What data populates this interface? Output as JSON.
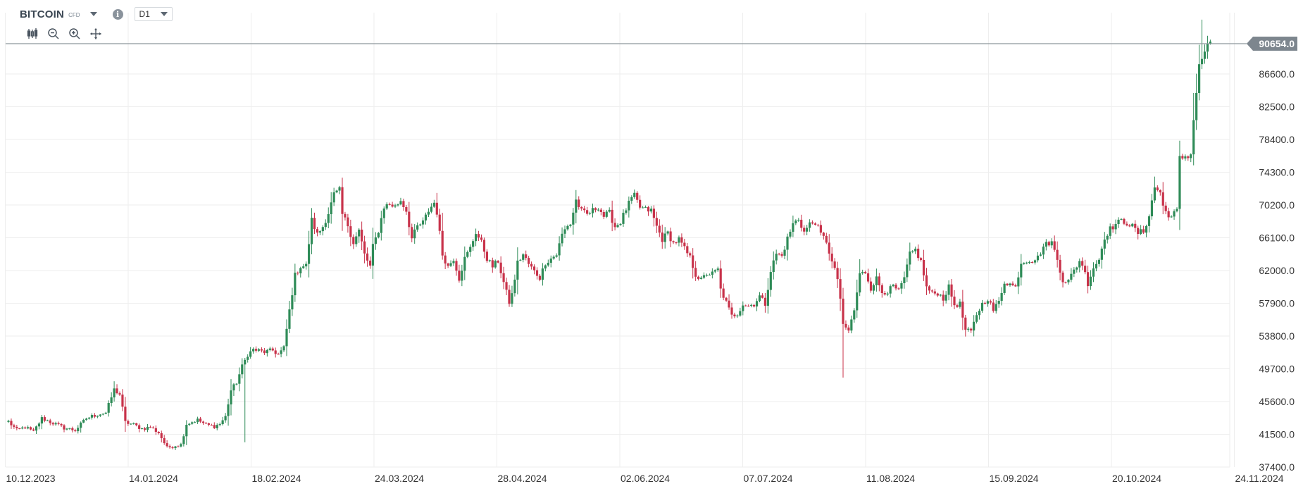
{
  "header": {
    "symbol": "BITCOIN",
    "instrument_type": "CFD",
    "timeframe": "D1"
  },
  "toolbar": {
    "tools": [
      "candlestick-icon",
      "zoom-out-icon",
      "zoom-in-icon",
      "pan-icon"
    ]
  },
  "colors": {
    "up": "#2e8b57",
    "down": "#c8324a",
    "grid": "#eeeeee",
    "price_line": "#8e969c",
    "price_tag": "#7d868e"
  },
  "chart_data": {
    "type": "candlestick",
    "instrument": "BITCOIN",
    "interval": "D1",
    "y_ticks": [
      "37400.0",
      "41500.0",
      "45600.0",
      "49700.0",
      "53800.0",
      "57900.0",
      "62000.0",
      "66100.0",
      "70200.0",
      "74300.0",
      "78400.0",
      "82500.0",
      "86600.0"
    ],
    "x_ticks": [
      "10.12.2023",
      "14.01.2024",
      "18.02.2024",
      "24.03.2024",
      "28.04.2024",
      "02.06.2024",
      "07.07.2024",
      "11.08.2024",
      "15.09.2024",
      "20.10.2024",
      "24.11.2024"
    ],
    "ylim": [
      37400,
      90654
    ],
    "last_price": "90654.0",
    "keypoints": [
      [
        0,
        43100
      ],
      [
        3,
        42000
      ],
      [
        6,
        42400
      ],
      [
        9,
        41800
      ],
      [
        12,
        43500
      ],
      [
        16,
        42900
      ],
      [
        20,
        42300
      ],
      [
        24,
        42000
      ],
      [
        28,
        43500
      ],
      [
        32,
        44000
      ],
      [
        35,
        44200
      ],
      [
        38,
        47100
      ],
      [
        40,
        46500
      ],
      [
        42,
        43000
      ],
      [
        45,
        42700
      ],
      [
        48,
        42200
      ],
      [
        51,
        42400
      ],
      [
        54,
        41700
      ],
      [
        57,
        39800
      ],
      [
        60,
        40100
      ],
      [
        62,
        40200
      ],
      [
        64,
        42800
      ],
      [
        68,
        43300
      ],
      [
        71,
        42700
      ],
      [
        74,
        42500
      ],
      [
        76,
        42800
      ],
      [
        78,
        43700
      ],
      [
        80,
        47000
      ],
      [
        82,
        48000
      ],
      [
        84,
        50000
      ],
      [
        86,
        51500
      ],
      [
        88,
        52100
      ],
      [
        92,
        51800
      ],
      [
        95,
        52000
      ],
      [
        97,
        51500
      ],
      [
        99,
        52300
      ],
      [
        101,
        57000
      ],
      [
        103,
        61400
      ],
      [
        105,
        62500
      ],
      [
        107,
        62600
      ],
      [
        109,
        68300
      ],
      [
        111,
        66500
      ],
      [
        113,
        67500
      ],
      [
        115,
        69200
      ],
      [
        117,
        71500
      ],
      [
        119,
        72000
      ],
      [
        120,
        69000
      ],
      [
        122,
        67700
      ],
      [
        124,
        65500
      ],
      [
        126,
        67000
      ],
      [
        128,
        64000
      ],
      [
        130,
        62500
      ],
      [
        131,
        65000
      ],
      [
        133,
        67000
      ],
      [
        135,
        70000
      ],
      [
        137,
        70300
      ],
      [
        139,
        70000
      ],
      [
        141,
        70800
      ],
      [
        143,
        69500
      ],
      [
        145,
        66000
      ],
      [
        147,
        67500
      ],
      [
        149,
        68000
      ],
      [
        151,
        69500
      ],
      [
        153,
        70500
      ],
      [
        154,
        69300
      ],
      [
        156,
        64000
      ],
      [
        158,
        62500
      ],
      [
        160,
        63500
      ],
      [
        162,
        61000
      ],
      [
        164,
        63500
      ],
      [
        166,
        64800
      ],
      [
        168,
        66800
      ],
      [
        170,
        65500
      ],
      [
        172,
        63500
      ],
      [
        174,
        62500
      ],
      [
        176,
        63200
      ],
      [
        178,
        60500
      ],
      [
        180,
        58000
      ],
      [
        181,
        59000
      ],
      [
        183,
        63000
      ],
      [
        185,
        64000
      ],
      [
        187,
        62800
      ],
      [
        189,
        61900
      ],
      [
        191,
        61100
      ],
      [
        193,
        63000
      ],
      [
        195,
        63500
      ],
      [
        197,
        64000
      ],
      [
        199,
        66500
      ],
      [
        201,
        67700
      ],
      [
        202,
        67800
      ],
      [
        204,
        70800
      ],
      [
        206,
        69400
      ],
      [
        208,
        69000
      ],
      [
        210,
        69500
      ],
      [
        212,
        70000
      ],
      [
        214,
        68800
      ],
      [
        216,
        69200
      ],
      [
        218,
        67500
      ],
      [
        220,
        68100
      ],
      [
        222,
        69700
      ],
      [
        224,
        71000
      ],
      [
        225,
        71300
      ],
      [
        227,
        69900
      ],
      [
        229,
        69600
      ],
      [
        231,
        69500
      ],
      [
        233,
        67500
      ],
      [
        235,
        65900
      ],
      [
        237,
        66700
      ],
      [
        239,
        65400
      ],
      [
        241,
        65900
      ],
      [
        243,
        64700
      ],
      [
        245,
        63600
      ],
      [
        247,
        61500
      ],
      [
        249,
        60800
      ],
      [
        251,
        61600
      ],
      [
        253,
        61600
      ],
      [
        255,
        62100
      ],
      [
        256,
        59600
      ],
      [
        258,
        58000
      ],
      [
        260,
        56300
      ],
      [
        262,
        56600
      ],
      [
        264,
        57800
      ],
      [
        266,
        57600
      ],
      [
        268,
        57800
      ],
      [
        270,
        58800
      ],
      [
        272,
        57800
      ],
      [
        274,
        62000
      ],
      [
        276,
        64100
      ],
      [
        278,
        63800
      ],
      [
        280,
        66000
      ],
      [
        282,
        67800
      ],
      [
        284,
        68500
      ],
      [
        286,
        66800
      ],
      [
        288,
        67800
      ],
      [
        290,
        68100
      ],
      [
        292,
        66500
      ],
      [
        294,
        65700
      ],
      [
        296,
        63000
      ],
      [
        298,
        61000
      ],
      [
        299,
        58500
      ],
      [
        300,
        55000
      ],
      [
        302,
        54500
      ],
      [
        304,
        57000
      ],
      [
        306,
        61500
      ],
      [
        308,
        61800
      ],
      [
        310,
        59800
      ],
      [
        312,
        61000
      ],
      [
        314,
        59300
      ],
      [
        316,
        59400
      ],
      [
        318,
        60000
      ],
      [
        320,
        59400
      ],
      [
        322,
        61000
      ],
      [
        324,
        64000
      ],
      [
        326,
        64600
      ],
      [
        328,
        63100
      ],
      [
        330,
        59900
      ],
      [
        332,
        59100
      ],
      [
        334,
        59200
      ],
      [
        336,
        58500
      ],
      [
        338,
        59900
      ],
      [
        340,
        57700
      ],
      [
        342,
        57800
      ],
      [
        344,
        54500
      ],
      [
        346,
        54300
      ],
      [
        348,
        56500
      ],
      [
        350,
        57800
      ],
      [
        352,
        58500
      ],
      [
        354,
        57000
      ],
      [
        356,
        58100
      ],
      [
        358,
        60600
      ],
      [
        360,
        60300
      ],
      [
        362,
        59900
      ],
      [
        364,
        63000
      ],
      [
        366,
        63300
      ],
      [
        368,
        63300
      ],
      [
        370,
        63600
      ],
      [
        372,
        65000
      ],
      [
        374,
        65500
      ],
      [
        375,
        65500
      ],
      [
        377,
        63400
      ],
      [
        379,
        60800
      ],
      [
        381,
        60700
      ],
      [
        383,
        62000
      ],
      [
        385,
        63200
      ],
      [
        386,
        62800
      ],
      [
        388,
        60400
      ],
      [
        390,
        62400
      ],
      [
        392,
        63400
      ],
      [
        394,
        66200
      ],
      [
        396,
        67200
      ],
      [
        398,
        67800
      ],
      [
        400,
        68200
      ],
      [
        402,
        68000
      ],
      [
        404,
        67500
      ],
      [
        406,
        66700
      ],
      [
        408,
        66900
      ],
      [
        410,
        68900
      ],
      [
        412,
        72400
      ],
      [
        414,
        71800
      ],
      [
        415,
        70000
      ],
      [
        416,
        69400
      ],
      [
        418,
        68700
      ],
      [
        420,
        69500
      ],
      [
        421,
        76000
      ],
      [
        423,
        76300
      ],
      [
        425,
        76500
      ],
      [
        426,
        81000
      ],
      [
        428,
        87500
      ],
      [
        430,
        89500
      ],
      [
        432,
        90654
      ]
    ]
  }
}
